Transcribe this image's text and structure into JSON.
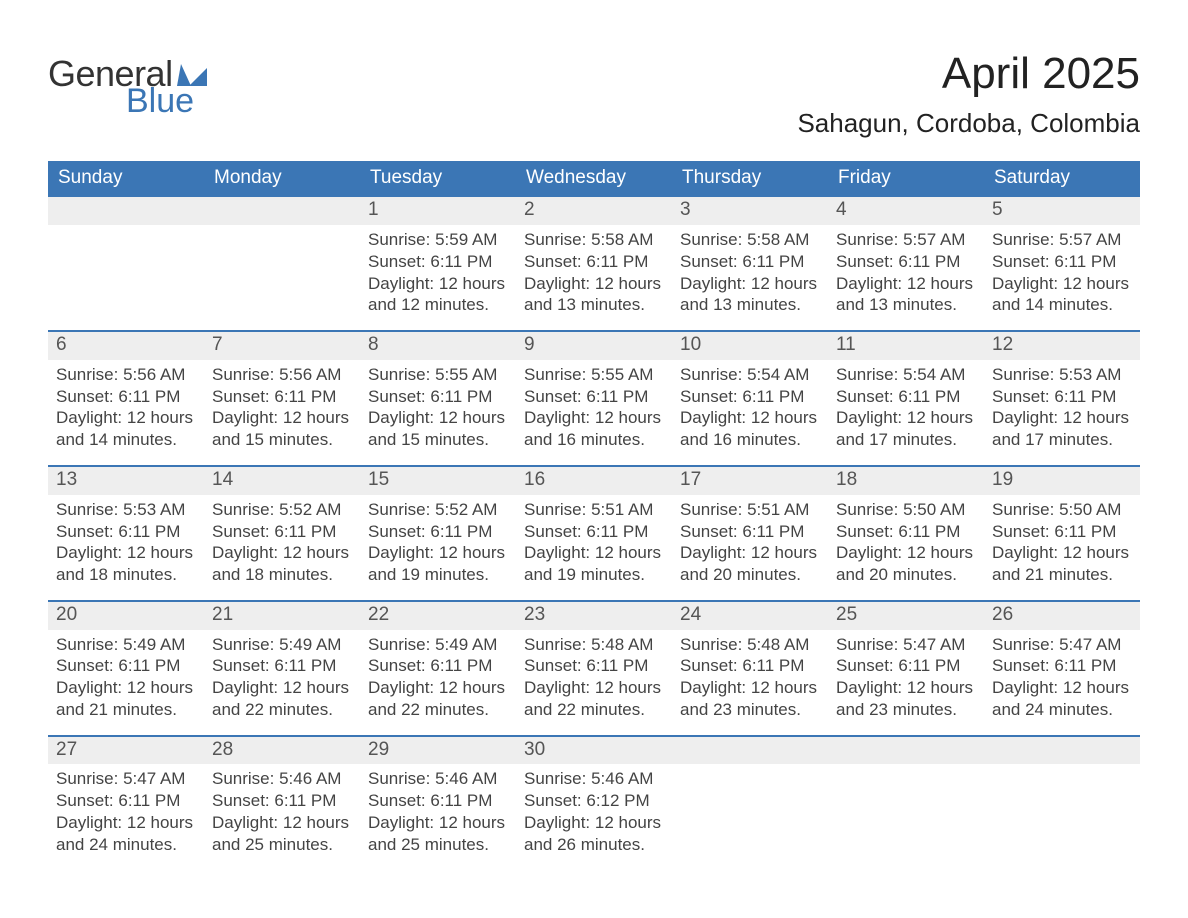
{
  "logo": {
    "word1": "General",
    "word2": "Blue",
    "brand_color": "#3b76b5"
  },
  "header": {
    "month_title": "April 2025",
    "location": "Sahagun, Cordoba, Colombia"
  },
  "calendar": {
    "type": "table",
    "header_bg": "#3b76b5",
    "header_fg": "#ffffff",
    "daynum_bg": "#eeeeee",
    "week_divider_color": "#3b76b5",
    "background_color": "#ffffff",
    "text_color": "#444444",
    "day_names": [
      "Sunday",
      "Monday",
      "Tuesday",
      "Wednesday",
      "Thursday",
      "Friday",
      "Saturday"
    ],
    "weeks": [
      [
        null,
        null,
        {
          "n": "1",
          "sunrise": "5:59 AM",
          "sunset": "6:11 PM",
          "daylight": "12 hours and 12 minutes."
        },
        {
          "n": "2",
          "sunrise": "5:58 AM",
          "sunset": "6:11 PM",
          "daylight": "12 hours and 13 minutes."
        },
        {
          "n": "3",
          "sunrise": "5:58 AM",
          "sunset": "6:11 PM",
          "daylight": "12 hours and 13 minutes."
        },
        {
          "n": "4",
          "sunrise": "5:57 AM",
          "sunset": "6:11 PM",
          "daylight": "12 hours and 13 minutes."
        },
        {
          "n": "5",
          "sunrise": "5:57 AM",
          "sunset": "6:11 PM",
          "daylight": "12 hours and 14 minutes."
        }
      ],
      [
        {
          "n": "6",
          "sunrise": "5:56 AM",
          "sunset": "6:11 PM",
          "daylight": "12 hours and 14 minutes."
        },
        {
          "n": "7",
          "sunrise": "5:56 AM",
          "sunset": "6:11 PM",
          "daylight": "12 hours and 15 minutes."
        },
        {
          "n": "8",
          "sunrise": "5:55 AM",
          "sunset": "6:11 PM",
          "daylight": "12 hours and 15 minutes."
        },
        {
          "n": "9",
          "sunrise": "5:55 AM",
          "sunset": "6:11 PM",
          "daylight": "12 hours and 16 minutes."
        },
        {
          "n": "10",
          "sunrise": "5:54 AM",
          "sunset": "6:11 PM",
          "daylight": "12 hours and 16 minutes."
        },
        {
          "n": "11",
          "sunrise": "5:54 AM",
          "sunset": "6:11 PM",
          "daylight": "12 hours and 17 minutes."
        },
        {
          "n": "12",
          "sunrise": "5:53 AM",
          "sunset": "6:11 PM",
          "daylight": "12 hours and 17 minutes."
        }
      ],
      [
        {
          "n": "13",
          "sunrise": "5:53 AM",
          "sunset": "6:11 PM",
          "daylight": "12 hours and 18 minutes."
        },
        {
          "n": "14",
          "sunrise": "5:52 AM",
          "sunset": "6:11 PM",
          "daylight": "12 hours and 18 minutes."
        },
        {
          "n": "15",
          "sunrise": "5:52 AM",
          "sunset": "6:11 PM",
          "daylight": "12 hours and 19 minutes."
        },
        {
          "n": "16",
          "sunrise": "5:51 AM",
          "sunset": "6:11 PM",
          "daylight": "12 hours and 19 minutes."
        },
        {
          "n": "17",
          "sunrise": "5:51 AM",
          "sunset": "6:11 PM",
          "daylight": "12 hours and 20 minutes."
        },
        {
          "n": "18",
          "sunrise": "5:50 AM",
          "sunset": "6:11 PM",
          "daylight": "12 hours and 20 minutes."
        },
        {
          "n": "19",
          "sunrise": "5:50 AM",
          "sunset": "6:11 PM",
          "daylight": "12 hours and 21 minutes."
        }
      ],
      [
        {
          "n": "20",
          "sunrise": "5:49 AM",
          "sunset": "6:11 PM",
          "daylight": "12 hours and 21 minutes."
        },
        {
          "n": "21",
          "sunrise": "5:49 AM",
          "sunset": "6:11 PM",
          "daylight": "12 hours and 22 minutes."
        },
        {
          "n": "22",
          "sunrise": "5:49 AM",
          "sunset": "6:11 PM",
          "daylight": "12 hours and 22 minutes."
        },
        {
          "n": "23",
          "sunrise": "5:48 AM",
          "sunset": "6:11 PM",
          "daylight": "12 hours and 22 minutes."
        },
        {
          "n": "24",
          "sunrise": "5:48 AM",
          "sunset": "6:11 PM",
          "daylight": "12 hours and 23 minutes."
        },
        {
          "n": "25",
          "sunrise": "5:47 AM",
          "sunset": "6:11 PM",
          "daylight": "12 hours and 23 minutes."
        },
        {
          "n": "26",
          "sunrise": "5:47 AM",
          "sunset": "6:11 PM",
          "daylight": "12 hours and 24 minutes."
        }
      ],
      [
        {
          "n": "27",
          "sunrise": "5:47 AM",
          "sunset": "6:11 PM",
          "daylight": "12 hours and 24 minutes."
        },
        {
          "n": "28",
          "sunrise": "5:46 AM",
          "sunset": "6:11 PM",
          "daylight": "12 hours and 25 minutes."
        },
        {
          "n": "29",
          "sunrise": "5:46 AM",
          "sunset": "6:11 PM",
          "daylight": "12 hours and 25 minutes."
        },
        {
          "n": "30",
          "sunrise": "5:46 AM",
          "sunset": "6:12 PM",
          "daylight": "12 hours and 26 minutes."
        },
        null,
        null,
        null
      ]
    ],
    "labels": {
      "sunrise": "Sunrise:",
      "sunset": "Sunset:",
      "daylight": "Daylight:"
    }
  }
}
